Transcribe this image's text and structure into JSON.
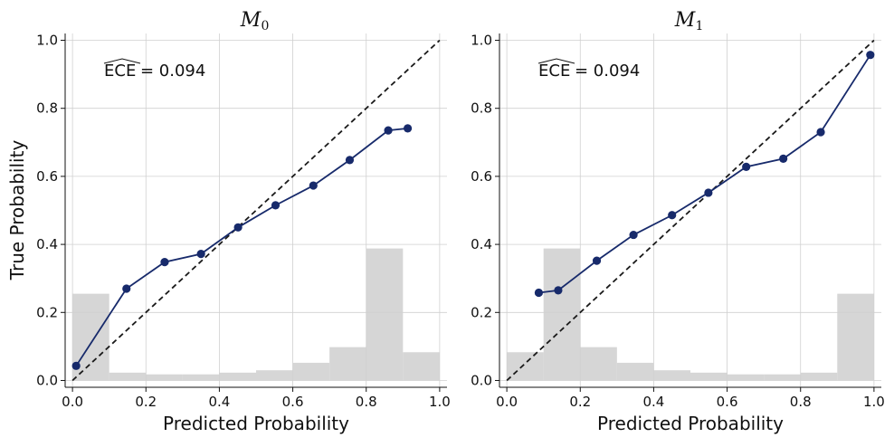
{
  "colors": {
    "series": "#172a6b",
    "diagonal": "#1a1a1a",
    "histogram": "#d6d6d6",
    "grid": "#d0d0d0",
    "axis": "#111111"
  },
  "figure": {
    "ylabel": "True Probability"
  },
  "chart_data": [
    {
      "type": "line",
      "title": "M",
      "title_subscript": "0",
      "xlabel": "Predicted Probability",
      "ylabel": "True Probability",
      "xlim": [
        -0.02,
        1.02
      ],
      "ylim": [
        -0.02,
        1.02
      ],
      "xticks": [
        "0.0",
        "0.2",
        "0.4",
        "0.6",
        "0.8",
        "1.0"
      ],
      "yticks": [
        "0.0",
        "0.2",
        "0.4",
        "0.6",
        "0.8",
        "1.0"
      ],
      "grid": true,
      "annotation": {
        "label": "ECE",
        "value": " = 0.094"
      },
      "series": [
        {
          "x": [
            0.01,
            0.147,
            0.251,
            0.35,
            0.451,
            0.553,
            0.656,
            0.755,
            0.86,
            0.913
          ],
          "y": [
            0.043,
            0.27,
            0.348,
            0.372,
            0.45,
            0.515,
            0.573,
            0.648,
            0.735,
            0.741
          ]
        }
      ],
      "histogram": {
        "bin_edges": [
          0.0,
          0.1,
          0.2,
          0.3,
          0.4,
          0.5,
          0.6,
          0.7,
          0.8,
          0.9,
          1.0
        ],
        "heights": [
          0.255,
          0.023,
          0.018,
          0.018,
          0.023,
          0.03,
          0.052,
          0.098,
          0.388,
          0.083
        ]
      },
      "diagonal": [
        [
          0,
          0
        ],
        [
          1,
          1
        ]
      ]
    },
    {
      "type": "line",
      "title": "M",
      "title_subscript": "1",
      "xlabel": "Predicted Probability",
      "xlim": [
        -0.02,
        1.02
      ],
      "ylim": [
        -0.02,
        1.02
      ],
      "xticks": [
        "0.0",
        "0.2",
        "0.4",
        "0.6",
        "0.8",
        "1.0"
      ],
      "yticks": [
        "0.0",
        "0.2",
        "0.4",
        "0.6",
        "0.8",
        "1.0"
      ],
      "grid": true,
      "annotation": {
        "label": "ECE",
        "value": " = 0.094"
      },
      "series": [
        {
          "x": [
            0.087,
            0.14,
            0.245,
            0.345,
            0.45,
            0.549,
            0.652,
            0.753,
            0.855,
            0.99
          ],
          "y": [
            0.258,
            0.265,
            0.352,
            0.428,
            0.486,
            0.552,
            0.628,
            0.652,
            0.73,
            0.957
          ]
        }
      ],
      "histogram": {
        "bin_edges": [
          0.0,
          0.1,
          0.2,
          0.3,
          0.4,
          0.5,
          0.6,
          0.7,
          0.8,
          0.9,
          1.0
        ],
        "heights": [
          0.083,
          0.388,
          0.098,
          0.052,
          0.03,
          0.023,
          0.018,
          0.018,
          0.023,
          0.255
        ]
      },
      "diagonal": [
        [
          0,
          0
        ],
        [
          1,
          1
        ]
      ]
    }
  ]
}
